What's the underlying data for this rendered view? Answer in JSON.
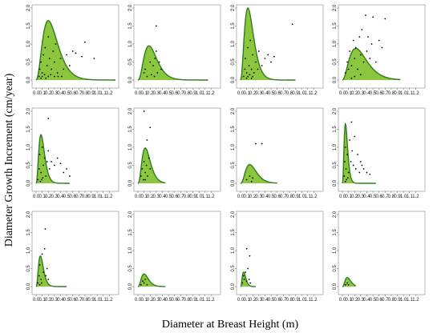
{
  "figure": {
    "xlabel": "Diameter at Breast Height (m)",
    "ylabel": "Diameter Growth Increment (cm/year)"
  },
  "colors": {
    "fill": "#8cc63f",
    "curve": "#2e7d1f",
    "points": "#000000"
  },
  "chart_data": [
    {
      "type": "scatter",
      "title": "",
      "xlim": [
        0,
        1.3
      ],
      "ylim": [
        0,
        2.0
      ],
      "xticks": [
        "0.0",
        "0.1",
        "0.2",
        "0.3",
        "0.4",
        "0.5",
        "0.6",
        "0.7",
        "0.8",
        "0.9",
        "1.0",
        "1.1",
        "1.2"
      ],
      "yticks": [
        "0.0",
        "0.5",
        "1.0",
        "1.5",
        "2.0"
      ],
      "curve": {
        "peak_x": 0.2,
        "peak_y": 1.65,
        "end_x": 1.35,
        "shape": 2.5
      },
      "points": [
        [
          0.05,
          0.1
        ],
        [
          0.06,
          0.3
        ],
        [
          0.08,
          0.5
        ],
        [
          0.1,
          0.2
        ],
        [
          0.12,
          0.7
        ],
        [
          0.15,
          0.9
        ],
        [
          0.18,
          0.4
        ],
        [
          0.2,
          1.2
        ],
        [
          0.22,
          0.6
        ],
        [
          0.25,
          0.3
        ],
        [
          0.28,
          0.8
        ],
        [
          0.3,
          0.5
        ],
        [
          0.32,
          1.0
        ],
        [
          0.35,
          0.2
        ],
        [
          0.4,
          0.6
        ],
        [
          0.45,
          0.3
        ],
        [
          0.5,
          0.7
        ],
        [
          0.55,
          0.4
        ],
        [
          0.6,
          0.8
        ],
        [
          0.65,
          0.75
        ],
        [
          0.75,
          0.65
        ],
        [
          0.8,
          1.05
        ],
        [
          0.95,
          0.6
        ],
        [
          0.08,
          0.05
        ],
        [
          0.1,
          0.1
        ],
        [
          0.14,
          0.15
        ],
        [
          0.16,
          0.05
        ],
        [
          0.2,
          0.1
        ],
        [
          0.24,
          0.15
        ],
        [
          0.3,
          0.1
        ],
        [
          0.36,
          0.1
        ],
        [
          0.42,
          0.1
        ]
      ]
    },
    {
      "type": "scatter",
      "title": "",
      "xlim": [
        0,
        1.3
      ],
      "ylim": [
        0,
        2.0
      ],
      "xticks": [
        "0.0",
        "0.1",
        "0.2",
        "0.3",
        "0.4",
        "0.5",
        "0.6",
        "0.7",
        "0.8",
        "0.9",
        "1.0",
        "1.1",
        "1.2"
      ],
      "yticks": [
        "0.0",
        "0.5",
        "1.0",
        "1.5",
        "2.0"
      ],
      "curve": {
        "peak_x": 0.18,
        "peak_y": 0.95,
        "end_x": 1.15,
        "shape": 2.8
      },
      "points": [
        [
          0.1,
          0.2
        ],
        [
          0.12,
          0.3
        ],
        [
          0.15,
          0.1
        ],
        [
          0.2,
          0.5
        ],
        [
          0.25,
          0.4
        ],
        [
          0.28,
          0.6
        ],
        [
          0.3,
          0.8
        ],
        [
          0.32,
          0.2
        ],
        [
          0.35,
          0.5
        ],
        [
          0.38,
          0.3
        ],
        [
          0.3,
          1.5
        ],
        [
          0.22,
          0.15
        ],
        [
          0.27,
          0.1
        ]
      ]
    },
    {
      "type": "scatter",
      "title": "",
      "xlim": [
        0,
        1.3
      ],
      "ylim": [
        0,
        2.0
      ],
      "xticks": [
        "0.0",
        "0.1",
        "0.2",
        "0.3",
        "0.4",
        "0.5",
        "0.6",
        "0.7",
        "0.8",
        "0.9",
        "1.0",
        "1.1",
        "1.2"
      ],
      "yticks": [
        "0.0",
        "0.5",
        "1.0",
        "1.5",
        "2.0"
      ],
      "curve": {
        "peak_x": 0.12,
        "peak_y": 2.0,
        "end_x": 0.9,
        "shape": 2.5
      },
      "points": [
        [
          0.05,
          0.1
        ],
        [
          0.07,
          0.3
        ],
        [
          0.08,
          0.6
        ],
        [
          0.1,
          0.2
        ],
        [
          0.12,
          0.9
        ],
        [
          0.14,
          0.4
        ],
        [
          0.16,
          1.1
        ],
        [
          0.18,
          0.3
        ],
        [
          0.2,
          0.7
        ],
        [
          0.22,
          0.2
        ],
        [
          0.25,
          0.5
        ],
        [
          0.28,
          0.3
        ],
        [
          0.3,
          0.8
        ],
        [
          0.35,
          0.4
        ],
        [
          0.4,
          0.6
        ],
        [
          0.45,
          0.7
        ],
        [
          0.5,
          0.5
        ],
        [
          0.55,
          0.65
        ],
        [
          0.85,
          1.55
        ],
        [
          0.1,
          0.05
        ],
        [
          0.12,
          0.1
        ],
        [
          0.15,
          0.15
        ],
        [
          0.18,
          0.05
        ],
        [
          0.2,
          0.1
        ]
      ]
    },
    {
      "type": "scatter",
      "title": "",
      "xlim": [
        0,
        1.3
      ],
      "ylim": [
        0,
        2.0
      ],
      "xticks": [
        "0.0",
        "0.1",
        "0.2",
        "0.3",
        "0.4",
        "0.5",
        "0.6",
        "0.7",
        "0.8",
        "0.9",
        "1.0",
        "1.1",
        "1.2"
      ],
      "yticks": [
        "0.0",
        "0.5",
        "1.0",
        "1.5",
        "2.0"
      ],
      "curve": {
        "peak_x": 0.22,
        "peak_y": 0.88,
        "end_x": 0.95,
        "shape": 2.3
      },
      "points": [
        [
          0.05,
          0.2
        ],
        [
          0.08,
          0.5
        ],
        [
          0.1,
          0.3
        ],
        [
          0.12,
          0.8
        ],
        [
          0.15,
          0.4
        ],
        [
          0.18,
          1.1
        ],
        [
          0.2,
          0.6
        ],
        [
          0.22,
          0.9
        ],
        [
          0.25,
          0.3
        ],
        [
          0.28,
          1.2
        ],
        [
          0.3,
          0.7
        ],
        [
          0.32,
          1.4
        ],
        [
          0.35,
          0.5
        ],
        [
          0.38,
          1.8
        ],
        [
          0.4,
          0.8
        ],
        [
          0.42,
          1.2
        ],
        [
          0.45,
          0.6
        ],
        [
          0.48,
          1.0
        ],
        [
          0.5,
          1.75
        ],
        [
          0.55,
          0.5
        ],
        [
          0.6,
          1.1
        ],
        [
          0.65,
          0.9
        ],
        [
          0.7,
          1.7
        ],
        [
          0.3,
          0.15
        ],
        [
          0.2,
          0.1
        ],
        [
          0.15,
          0.05
        ]
      ]
    },
    {
      "type": "scatter",
      "title": "",
      "xlim": [
        0,
        1.3
      ],
      "ylim": [
        0,
        2.0
      ],
      "xticks": [
        "0.0",
        "0.1",
        "0.2",
        "0.3",
        "0.4",
        "0.5",
        "0.6",
        "0.7",
        "0.8",
        "0.9",
        "1.0",
        "1.1",
        "1.2"
      ],
      "yticks": [
        "0.0",
        "0.5",
        "1.0",
        "1.5",
        "2.0"
      ],
      "curve": {
        "peak_x": 0.08,
        "peak_y": 1.35,
        "end_x": 0.55,
        "shape": 2.8
      },
      "points": [
        [
          0.03,
          0.1
        ],
        [
          0.05,
          0.4
        ],
        [
          0.06,
          0.8
        ],
        [
          0.08,
          0.3
        ],
        [
          0.1,
          1.0
        ],
        [
          0.12,
          0.5
        ],
        [
          0.14,
          0.7
        ],
        [
          0.16,
          0.2
        ],
        [
          0.18,
          0.6
        ],
        [
          0.2,
          0.9
        ],
        [
          0.22,
          0.4
        ],
        [
          0.25,
          0.6
        ],
        [
          0.3,
          0.5
        ],
        [
          0.35,
          0.7
        ],
        [
          0.4,
          0.55
        ],
        [
          0.45,
          0.3
        ],
        [
          0.5,
          0.4
        ],
        [
          0.55,
          0.2
        ],
        [
          0.2,
          1.8
        ],
        [
          0.07,
          0.05
        ],
        [
          0.09,
          0.1
        ],
        [
          0.11,
          0.15
        ]
      ]
    },
    {
      "type": "scatter",
      "title": "",
      "xlim": [
        0,
        1.3
      ],
      "ylim": [
        0,
        2.0
      ],
      "xticks": [
        "0.0",
        "0.1",
        "0.2",
        "0.3",
        "0.4",
        "0.5",
        "0.6",
        "0.7",
        "0.8",
        "0.9",
        "1.0",
        "1.1",
        "1.2"
      ],
      "yticks": [
        "0.0",
        "0.5",
        "1.0",
        "1.5",
        "2.0"
      ],
      "curve": {
        "peak_x": 0.12,
        "peak_y": 0.98,
        "end_x": 0.45,
        "shape": 3.0
      },
      "points": [
        [
          0.05,
          0.2
        ],
        [
          0.07,
          0.4
        ],
        [
          0.09,
          0.1
        ],
        [
          0.1,
          0.6
        ],
        [
          0.12,
          0.3
        ],
        [
          0.14,
          0.5
        ],
        [
          0.16,
          0.2
        ],
        [
          0.18,
          0.7
        ],
        [
          0.2,
          0.4
        ],
        [
          0.15,
          1.2
        ],
        [
          0.1,
          2.0
        ],
        [
          0.2,
          1.55
        ],
        [
          0.12,
          0.1
        ]
      ]
    },
    {
      "type": "scatter",
      "title": "",
      "xlim": [
        0,
        1.3
      ],
      "ylim": [
        0,
        2.0
      ],
      "xticks": [
        "0.0",
        "0.1",
        "0.2",
        "0.3",
        "0.4",
        "0.5",
        "0.6",
        "0.7",
        "0.8",
        "0.9",
        "1.0",
        "1.1",
        "1.2"
      ],
      "yticks": [
        "0.0",
        "0.5",
        "1.0",
        "1.5",
        "2.0"
      ],
      "curve": {
        "peak_x": 0.15,
        "peak_y": 0.52,
        "end_x": 0.6,
        "shape": 2.8
      },
      "points": [
        [
          0.1,
          0.1
        ],
        [
          0.15,
          0.2
        ],
        [
          0.2,
          0.15
        ],
        [
          0.25,
          1.1
        ],
        [
          0.35,
          1.1
        ],
        [
          0.18,
          0.05
        ]
      ]
    },
    {
      "type": "scatter",
      "title": "",
      "xlim": [
        0,
        1.3
      ],
      "ylim": [
        0,
        2.0
      ],
      "xticks": [
        "0.0",
        "0.1",
        "0.2",
        "0.3",
        "0.4",
        "0.5",
        "0.6",
        "0.7",
        "0.8",
        "0.9",
        "1.0",
        "1.1",
        "1.2"
      ],
      "yticks": [
        "0.0",
        "0.5",
        "1.0",
        "1.5",
        "2.0"
      ],
      "curve": {
        "peak_x": 0.05,
        "peak_y": 1.65,
        "end_x": 0.55,
        "shape": 3.0
      },
      "points": [
        [
          0.03,
          0.2
        ],
        [
          0.04,
          0.6
        ],
        [
          0.05,
          1.0
        ],
        [
          0.06,
          0.4
        ],
        [
          0.08,
          0.8
        ],
        [
          0.1,
          0.3
        ],
        [
          0.12,
          1.2
        ],
        [
          0.14,
          0.6
        ],
        [
          0.16,
          0.9
        ],
        [
          0.18,
          0.5
        ],
        [
          0.2,
          1.3
        ],
        [
          0.22,
          0.4
        ],
        [
          0.25,
          0.8
        ],
        [
          0.28,
          0.3
        ],
        [
          0.3,
          0.6
        ],
        [
          0.32,
          0.5
        ],
        [
          0.35,
          0.4
        ],
        [
          0.4,
          0.3
        ],
        [
          0.45,
          0.25
        ],
        [
          0.15,
          1.7
        ],
        [
          0.05,
          0.05
        ],
        [
          0.07,
          0.1
        ],
        [
          0.09,
          0.15
        ]
      ]
    },
    {
      "type": "scatter",
      "title": "",
      "xlim": [
        0,
        1.3
      ],
      "ylim": [
        0,
        2.0
      ],
      "xticks": [
        "0.0",
        "0.1",
        "0.2",
        "0.3",
        "0.4",
        "0.5",
        "0.6",
        "0.7",
        "0.8",
        "0.9",
        "1.0",
        "1.1",
        "1.2"
      ],
      "yticks": [
        "0.0",
        "0.5",
        "1.0",
        "1.5",
        "2.0"
      ],
      "curve": {
        "peak_x": 0.07,
        "peak_y": 0.85,
        "end_x": 0.5,
        "shape": 3.0
      },
      "points": [
        [
          0.03,
          0.1
        ],
        [
          0.05,
          0.3
        ],
        [
          0.06,
          0.6
        ],
        [
          0.08,
          0.2
        ],
        [
          0.1,
          0.9
        ],
        [
          0.12,
          0.4
        ],
        [
          0.14,
          1.05
        ],
        [
          0.16,
          0.3
        ],
        [
          0.18,
          0.5
        ],
        [
          0.2,
          0.2
        ],
        [
          0.15,
          1.6
        ],
        [
          0.06,
          0.05
        ],
        [
          0.09,
          0.1
        ]
      ]
    },
    {
      "type": "scatter",
      "title": "",
      "xlim": [
        0,
        1.3
      ],
      "ylim": [
        0,
        2.0
      ],
      "xticks": [
        "0.0",
        "0.1",
        "0.2",
        "0.3",
        "0.4",
        "0.5",
        "0.6",
        "0.7",
        "0.8",
        "0.9",
        "1.0",
        "1.1",
        "1.2"
      ],
      "yticks": [
        "0.0",
        "0.5",
        "1.0",
        "1.5",
        "2.0"
      ],
      "curve": {
        "peak_x": 0.1,
        "peak_y": 0.35,
        "end_x": 0.45,
        "shape": 3.0
      },
      "points": [
        [
          0.05,
          0.05
        ],
        [
          0.08,
          0.15
        ],
        [
          0.1,
          0.1
        ],
        [
          0.12,
          0.2
        ],
        [
          0.15,
          0.05
        ]
      ]
    },
    {
      "type": "scatter",
      "title": "",
      "xlim": [
        0,
        1.3
      ],
      "ylim": [
        0,
        2.0
      ],
      "xticks": [
        "0.0",
        "0.1",
        "0.2",
        "0.3",
        "0.4",
        "0.5",
        "0.6",
        "0.7",
        "0.8",
        "0.9",
        "1.0",
        "1.1",
        "1.2"
      ],
      "yticks": [
        "0.0",
        "0.5",
        "1.0",
        "1.5",
        "2.0"
      ],
      "curve": {
        "peak_x": 0.05,
        "peak_y": 0.4,
        "end_x": 0.25,
        "shape": 3.0
      },
      "points": [
        [
          0.03,
          0.1
        ],
        [
          0.05,
          0.3
        ],
        [
          0.06,
          0.2
        ],
        [
          0.08,
          0.4
        ],
        [
          0.1,
          0.15
        ],
        [
          0.12,
          0.5
        ],
        [
          0.14,
          0.2
        ],
        [
          0.16,
          0.1
        ],
        [
          0.1,
          1.05
        ],
        [
          0.15,
          0.85
        ]
      ]
    },
    {
      "type": "scatter",
      "title": "",
      "xlim": [
        0,
        1.3
      ],
      "ylim": [
        0,
        2.0
      ],
      "xticks": [
        "0.0",
        "0.1",
        "0.2",
        "0.3",
        "0.4",
        "0.5",
        "0.6",
        "0.7",
        "0.8",
        "0.9",
        "1.0",
        "1.1",
        "1.2"
      ],
      "yticks": [
        "0.0",
        "0.5",
        "1.0",
        "1.5",
        "2.0"
      ],
      "curve": {
        "peak_x": 0.08,
        "peak_y": 0.25,
        "end_x": 0.22,
        "shape": 3.0
      },
      "points": [
        [
          0.05,
          0.05
        ],
        [
          0.08,
          0.1
        ],
        [
          0.1,
          0.05
        ]
      ]
    }
  ]
}
